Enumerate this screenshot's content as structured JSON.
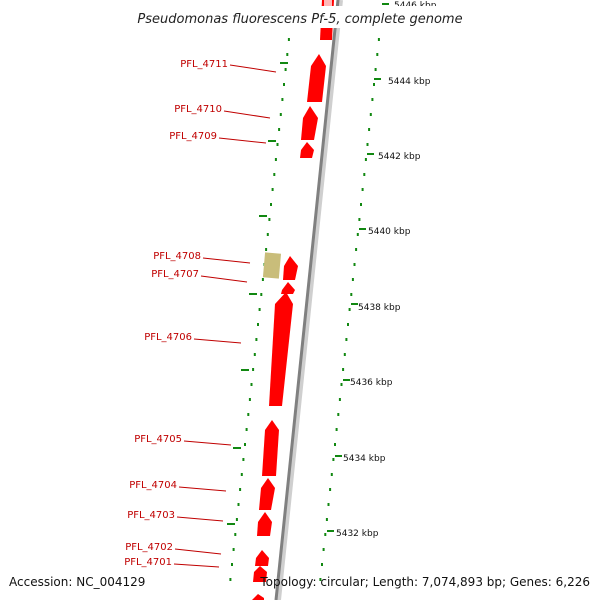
{
  "title": "Pseudomonas fluorescens Pf-5, complete genome",
  "accession_text": "Accession: NC_004129",
  "topology_text": "Topology: circular; Length: 7,074,893 bp; Genes: 6,226",
  "colors": {
    "gene": "#ff0000",
    "gene_other": "#c9bd7a",
    "axis": "#888888",
    "tick": "#118811",
    "label": "#c00000"
  },
  "coordinate_labels": [
    "5446 kbp",
    "5444 kbp",
    "5442 kbp",
    "5440 kbp",
    "5438 kbp",
    "5436 kbp",
    "5434 kbp",
    "5432 kbp"
  ],
  "gene_labels": [
    "PFL_4711",
    "PFL_4710",
    "PFL_4709",
    "PFL_4708",
    "PFL_4707",
    "PFL_4706",
    "PFL_4705",
    "PFL_4704",
    "PFL_4703",
    "PFL_4702",
    "PFL_4701"
  ]
}
